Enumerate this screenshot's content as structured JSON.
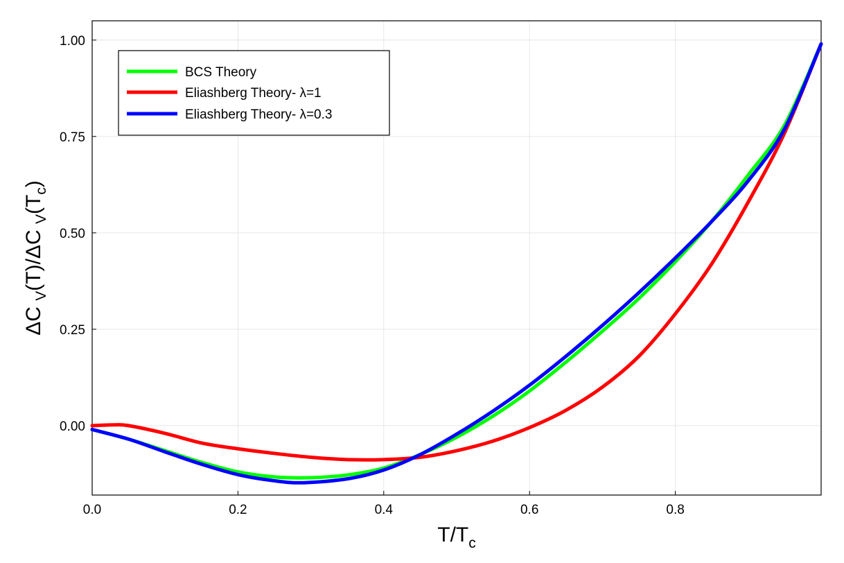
{
  "chart_data": {
    "type": "line",
    "title": "",
    "xlabel": "T/T",
    "xlabel_sub": "c",
    "ylabel_parts": [
      "ΔC ",
      "V",
      "(T)/ΔC ",
      "V",
      "(T",
      "c",
      ")"
    ],
    "xlim": [
      0.0,
      1.0
    ],
    "ylim": [
      -0.18,
      1.05
    ],
    "xticks": [
      0.0,
      0.2,
      0.4,
      0.6,
      0.8
    ],
    "xtick_labels": [
      "0.0",
      "0.2",
      "0.4",
      "0.6",
      "0.8"
    ],
    "yticks": [
      0.0,
      0.25,
      0.5,
      0.75,
      1.0
    ],
    "ytick_labels": [
      "0.00",
      "0.25",
      "0.50",
      "0.75",
      "1.00"
    ],
    "grid": true,
    "legend_position": "top-left",
    "series": [
      {
        "name": "BCS Theory",
        "color": "#00ff00",
        "x": [
          0.0,
          0.05,
          0.1,
          0.15,
          0.2,
          0.25,
          0.3,
          0.35,
          0.4,
          0.45,
          0.5,
          0.55,
          0.6,
          0.65,
          0.7,
          0.75,
          0.8,
          0.85,
          0.9,
          0.95,
          1.0
        ],
        "y": [
          -0.01,
          -0.035,
          -0.065,
          -0.095,
          -0.12,
          -0.133,
          -0.135,
          -0.128,
          -0.11,
          -0.075,
          -0.03,
          0.025,
          0.09,
          0.165,
          0.245,
          0.33,
          0.425,
          0.53,
          0.65,
          0.78,
          0.99
        ]
      },
      {
        "name": "Eliashberg Theory- λ=1",
        "color": "#ff0000",
        "x": [
          0.0,
          0.03,
          0.05,
          0.1,
          0.15,
          0.2,
          0.25,
          0.3,
          0.35,
          0.4,
          0.45,
          0.5,
          0.55,
          0.6,
          0.65,
          0.7,
          0.75,
          0.8,
          0.85,
          0.9,
          0.95,
          1.0
        ],
        "y": [
          0.0,
          0.002,
          0.0,
          -0.02,
          -0.045,
          -0.06,
          -0.072,
          -0.082,
          -0.088,
          -0.088,
          -0.082,
          -0.065,
          -0.04,
          -0.005,
          0.04,
          0.1,
          0.18,
          0.29,
          0.42,
          0.58,
          0.76,
          0.99
        ]
      },
      {
        "name": "Eliashberg Theory- λ=0.3",
        "color": "#0000ff",
        "x": [
          0.0,
          0.05,
          0.1,
          0.15,
          0.2,
          0.25,
          0.29,
          0.35,
          0.4,
          0.45,
          0.5,
          0.55,
          0.6,
          0.65,
          0.7,
          0.75,
          0.8,
          0.85,
          0.9,
          0.95,
          1.0
        ],
        "y": [
          -0.01,
          -0.035,
          -0.068,
          -0.1,
          -0.127,
          -0.143,
          -0.148,
          -0.138,
          -0.115,
          -0.075,
          -0.022,
          0.038,
          0.105,
          0.18,
          0.26,
          0.345,
          0.435,
          0.53,
          0.635,
          0.77,
          0.99
        ]
      }
    ]
  }
}
